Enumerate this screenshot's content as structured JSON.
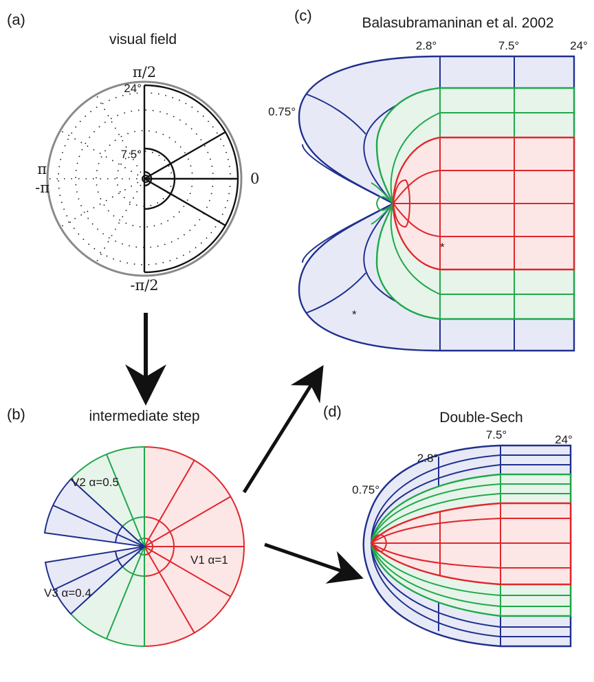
{
  "panels": {
    "a": {
      "label": "(a)",
      "title": "visual field",
      "angle_labels": {
        "top": "π/2",
        "bottom": "-π/2",
        "left_upper": "π",
        "left_lower": "-π",
        "right": "0"
      },
      "eccentricity_labels": {
        "outer": "24°",
        "inner": "7.5°"
      }
    },
    "b": {
      "label": "(b)",
      "title": "intermediate step",
      "area_labels": {
        "v1": "V1 α=1",
        "v2": "V2 α=0.5",
        "v3": "V3 α=0.4"
      }
    },
    "c": {
      "label": "(c)",
      "title": "Balasubramaninan et al. 2002",
      "eccentricity_labels": {
        "e075": "0.75°",
        "e28": "2.8°",
        "e75": "7.5°",
        "e24": "24°"
      },
      "asterisk": "*"
    },
    "d": {
      "label": "(d)",
      "title": "Double-Sech",
      "eccentricity_labels": {
        "e075": "0.75°",
        "e28": "2.8°",
        "e75": "7.5°",
        "e24": "24°"
      }
    }
  },
  "colors": {
    "v1_line": "#e0262b",
    "v1_fill": "#fde6e6",
    "v2_line": "#1fa84a",
    "v2_fill": "#e7f4ea",
    "v3_line": "#1f2f8f",
    "v3_fill": "#e7eaf6",
    "ink": "#111111",
    "grey": "#8a8a8a"
  }
}
